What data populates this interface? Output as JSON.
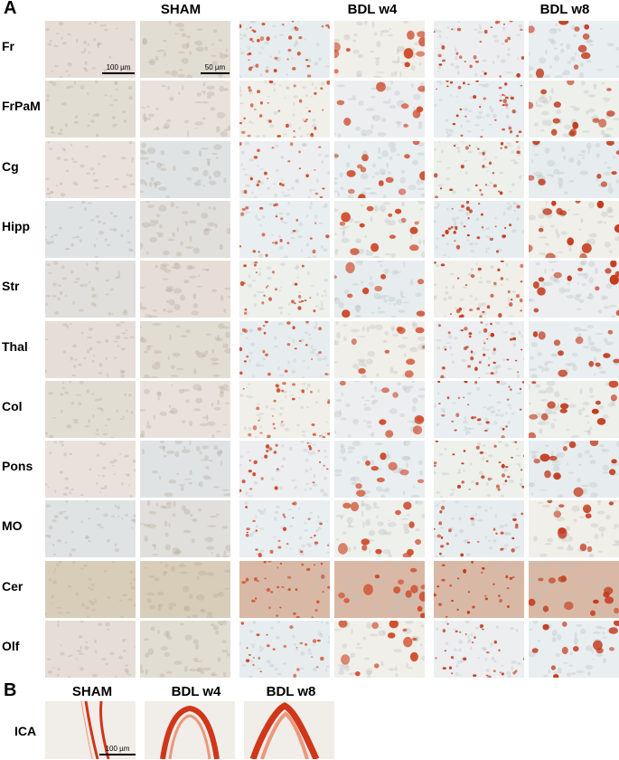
{
  "panel_a": {
    "letter": "A",
    "groups": [
      "SHAM",
      "BDL w4",
      "BDL w8"
    ],
    "rows": [
      "Fr",
      "FrPaM",
      "Cg",
      "Hipp",
      "Str",
      "Thal",
      "Col",
      "Pons",
      "MO",
      "Cer",
      "Olf"
    ],
    "scale_bars": {
      "low_mag": "100 µm",
      "high_mag": "50 µm"
    }
  },
  "panel_b": {
    "letter": "B",
    "groups": [
      "SHAM",
      "BDL w4",
      "BDL w8"
    ],
    "row": "ICA",
    "scale_bar": "100 µm"
  },
  "colors": {
    "stain_red": "#c8361a",
    "sham_background": "#e4dcd6",
    "bdl_background": "#e8eef0"
  }
}
